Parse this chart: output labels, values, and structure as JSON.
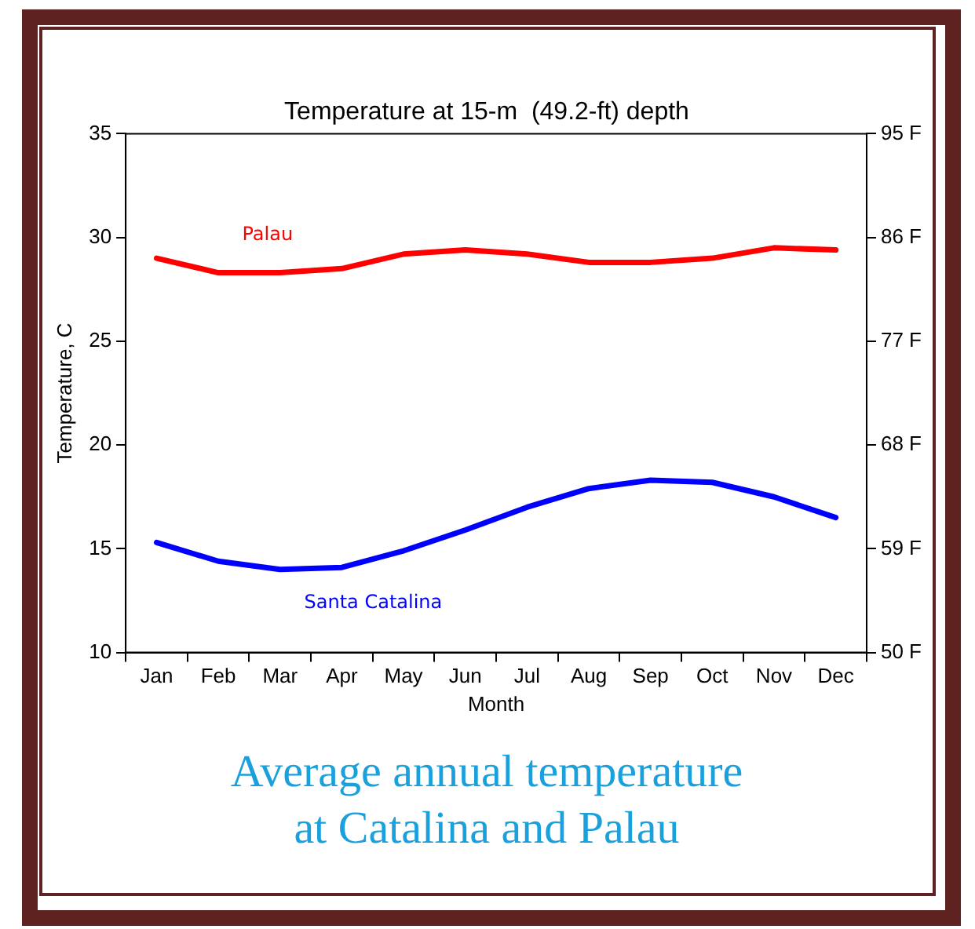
{
  "chart_data": {
    "type": "line",
    "title": "Temperature at 15-m  (49.2-ft) depth",
    "xlabel": "Month",
    "ylabel": "Temperature, C",
    "categories": [
      "Jan",
      "Feb",
      "Mar",
      "Apr",
      "May",
      "Jun",
      "Jul",
      "Aug",
      "Sep",
      "Oct",
      "Nov",
      "Dec"
    ],
    "ylim": [
      10,
      35
    ],
    "yticks": [
      10,
      15,
      20,
      25,
      30,
      35
    ],
    "y2lim": [
      50,
      95
    ],
    "y2ticks": [
      {
        "value": 50,
        "label": "50 F"
      },
      {
        "value": 59,
        "label": "59 F"
      },
      {
        "value": 68,
        "label": "68 F"
      },
      {
        "value": 77,
        "label": "77 F"
      },
      {
        "value": 86,
        "label": "86 F"
      },
      {
        "value": 95,
        "label": "95 F"
      }
    ],
    "series": [
      {
        "name": "Palau",
        "color": "#ff0000",
        "values": [
          29.0,
          28.3,
          28.3,
          28.5,
          29.2,
          29.4,
          29.2,
          28.8,
          28.8,
          29.0,
          29.5,
          29.4
        ]
      },
      {
        "name": "Santa Catalina",
        "color": "#0000ff",
        "values": [
          15.3,
          14.4,
          14.0,
          14.1,
          14.9,
          15.9,
          17.0,
          17.9,
          18.3,
          18.2,
          17.5,
          16.5
        ]
      }
    ],
    "grid": false,
    "legend": false,
    "marker": "none",
    "line_style": "solid",
    "annotations": [
      "Average annual temperature\nat Catalina and Palau"
    ]
  }
}
